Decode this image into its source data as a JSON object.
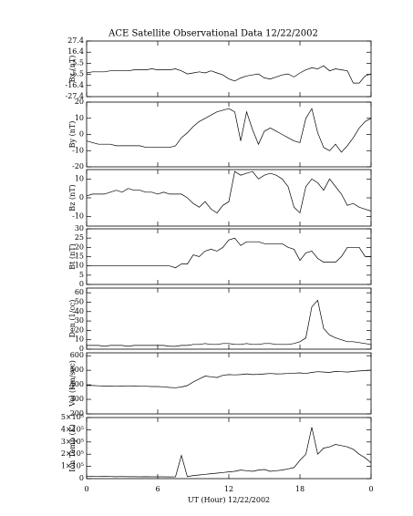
{
  "chart_data": {
    "type": "line",
    "title": "ACE Satellite Observational Data   12/22/2002",
    "xlabel": "UT (Hour)  12/22/2002",
    "xlim": [
      0,
      24
    ],
    "xticks": [
      0,
      6,
      12,
      18,
      {
        "value": 24,
        "label": "0"
      }
    ],
    "x": [
      0,
      0.5,
      1,
      1.5,
      2,
      2.5,
      3,
      3.5,
      4,
      4.5,
      5,
      5.5,
      6,
      6.5,
      7,
      7.5,
      8,
      8.5,
      9,
      9.5,
      10,
      10.5,
      11,
      11.5,
      12,
      12.5,
      13,
      13.5,
      14,
      14.5,
      15,
      15.5,
      16,
      16.5,
      17,
      17.5,
      18,
      18.5,
      19,
      19.5,
      20,
      20.5,
      21,
      21.5,
      22,
      22.5,
      23,
      23.5,
      24
    ],
    "series": [
      {
        "name": "Bx (nT)",
        "color": "#000000",
        "ylim": [
          -27.4,
          27.4
        ],
        "yticks": [
          27.4,
          16.4,
          5.5,
          -5.5,
          -16.4,
          -27.4
        ],
        "values": [
          -4,
          -3,
          -3,
          -3,
          -2,
          -2,
          -2,
          -2,
          -1,
          -1,
          -1,
          0,
          -1,
          -1,
          -1,
          0,
          -2,
          -5,
          -4,
          -3,
          -4,
          -2,
          -4,
          -6,
          -10,
          -12,
          -9,
          -7,
          -6,
          -5,
          -9,
          -10,
          -8,
          -6,
          -5,
          -8,
          -4,
          -1,
          1,
          0,
          3,
          -2,
          0,
          -1,
          -2,
          -14,
          -14,
          -7,
          -5
        ]
      },
      {
        "name": "By (nT)",
        "color": "#000000",
        "ylim": [
          -20,
          20
        ],
        "yticks": [
          20,
          10,
          0,
          -10,
          -20
        ],
        "values": [
          -4,
          -5,
          -6,
          -6,
          -6,
          -7,
          -7,
          -7,
          -7,
          -7,
          -8,
          -8,
          -8,
          -8,
          -8,
          -7,
          -2,
          1,
          5,
          8,
          10,
          12,
          14,
          15,
          16,
          14,
          -4,
          14,
          3,
          -6,
          2,
          4,
          2,
          0,
          -2,
          -4,
          -5,
          10,
          16,
          1,
          -8,
          -10,
          -6,
          -11,
          -7,
          -2,
          4,
          8,
          10
        ]
      },
      {
        "name": "Bz (nT)",
        "color": "#000000",
        "ylim": [
          -15,
          15
        ],
        "yticks": [
          10,
          0,
          -10
        ],
        "values": [
          1,
          2,
          2,
          2,
          3,
          4,
          3,
          5,
          4,
          4,
          3,
          3,
          2,
          3,
          2,
          2,
          2,
          0,
          -3,
          -5,
          -2,
          -6,
          -8,
          -4,
          -2,
          14,
          12,
          13,
          14,
          10,
          12,
          13,
          12,
          10,
          6,
          -5,
          -8,
          6,
          10,
          8,
          4,
          10,
          6,
          2,
          -4,
          -3,
          -5,
          -6,
          -7
        ]
      },
      {
        "name": "Bt (nT)",
        "color": "#000000",
        "ylim": [
          0,
          30
        ],
        "yticks": [
          0,
          5,
          10,
          15,
          20,
          25,
          30
        ],
        "values": [
          10,
          10,
          10,
          10,
          10,
          10,
          10,
          10,
          10,
          10,
          10,
          10,
          10,
          10,
          10,
          9,
          11,
          11,
          16,
          15,
          18,
          19,
          18,
          20,
          24,
          25,
          21,
          23,
          23,
          23,
          22,
          22,
          22,
          22,
          20,
          19,
          13,
          17,
          18,
          14,
          12,
          12,
          12,
          15,
          20,
          20,
          20,
          15,
          15
        ]
      },
      {
        "name": "Den (1/cc)",
        "color": "#000000",
        "ylim": [
          0,
          65
        ],
        "yticks": [
          0,
          10,
          20,
          30,
          40,
          50,
          60
        ],
        "values": [
          4,
          4,
          4,
          3,
          4,
          4,
          4,
          3,
          4,
          4,
          4,
          4,
          4,
          4,
          3,
          3,
          4,
          4,
          5,
          5,
          6,
          5,
          5,
          6,
          6,
          5,
          5,
          6,
          5,
          5,
          6,
          6,
          5,
          5,
          5,
          6,
          8,
          12,
          45,
          52,
          22,
          15,
          12,
          10,
          8,
          8,
          7,
          6,
          5
        ]
      },
      {
        "name": "Vel (Km/sec)",
        "color": "#000000",
        "ylim": [
          200,
          620
        ],
        "yticks": [
          200,
          300,
          400,
          500,
          600
        ],
        "values": [
          395,
          395,
          393,
          392,
          392,
          390,
          392,
          393,
          392,
          390,
          390,
          388,
          388,
          386,
          382,
          380,
          385,
          395,
          420,
          440,
          460,
          455,
          450,
          465,
          470,
          468,
          470,
          475,
          470,
          472,
          475,
          478,
          475,
          476,
          478,
          480,
          482,
          478,
          485,
          490,
          488,
          485,
          492,
          490,
          488,
          492,
          495,
          498,
          500
        ]
      },
      {
        "name": "Ion Temp (K)",
        "color": "#000000",
        "ylim": [
          0,
          500000
        ],
        "yticks": [
          0,
          {
            "value": 100000,
            "label": "1×10⁵"
          },
          {
            "value": 200000,
            "label": "2×10⁵"
          },
          {
            "value": 300000,
            "label": "3×10⁵"
          },
          {
            "value": 400000,
            "label": "4×10⁵"
          },
          {
            "value": 500000,
            "label": "5×10⁵"
          }
        ],
        "values": [
          20000,
          18000,
          17000,
          18000,
          17000,
          16000,
          17000,
          16000,
          16000,
          15000,
          16000,
          15000,
          15000,
          15000,
          14000,
          15000,
          190000,
          16000,
          25000,
          30000,
          35000,
          40000,
          45000,
          50000,
          55000,
          60000,
          70000,
          65000,
          60000,
          70000,
          75000,
          60000,
          65000,
          70000,
          80000,
          90000,
          150000,
          200000,
          420000,
          200000,
          250000,
          260000,
          280000,
          270000,
          260000,
          240000,
          200000,
          170000,
          130000
        ]
      }
    ]
  }
}
